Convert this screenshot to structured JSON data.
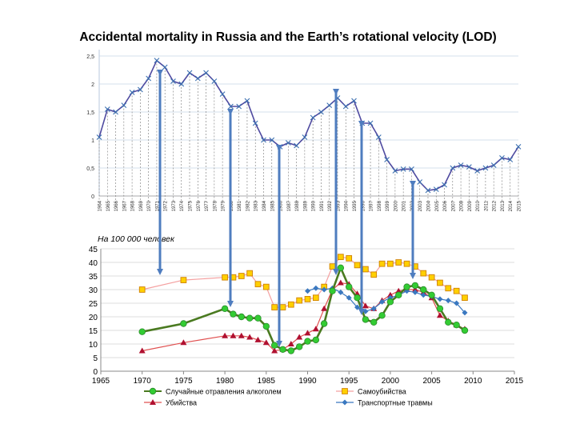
{
  "slide": {
    "title": "Accidental mortality in Russia and the Earth’s rotational velocity (LOD)"
  },
  "colors": {
    "lod_line": "#4f4aa0",
    "lod_markers": "#3a6fb0",
    "alcohol": "#4a7a20",
    "alcohol_marker": "#33cc33",
    "suicide": "#f4a0a0",
    "suicide_marker": "#ffd000",
    "homicide": "#e05050",
    "homicide_marker": "#b01030",
    "transport": "#3a78c0",
    "arrow": "#4f7dbf"
  },
  "chart_data": [
    {
      "type": "line",
      "title": "",
      "xlabel": "",
      "ylabel": "",
      "ylim": [
        0,
        2.5
      ],
      "yticks": [
        "0",
        "0,5",
        "1",
        "1,5",
        "2",
        "2,5"
      ],
      "x": [
        1964,
        1965,
        1966,
        1967,
        1968,
        1969,
        1970,
        1971,
        1972,
        1973,
        1974,
        1975,
        1976,
        1977,
        1978,
        1979,
        1980,
        1981,
        1982,
        1983,
        1984,
        1985,
        1986,
        1987,
        1988,
        1989,
        1990,
        1991,
        1992,
        1993,
        1994,
        1995,
        1996,
        1997,
        1998,
        1999,
        2000,
        2001,
        2002,
        2003,
        2004,
        2005,
        2006,
        2007,
        2008,
        2009,
        2010,
        2011,
        2012,
        2013,
        2014,
        2015
      ],
      "x_tick_labels": [
        "1964",
        "1965",
        "1966",
        "1967",
        "1968",
        "1969",
        "1970",
        "1971",
        "1972",
        "1973",
        "1974",
        "1975",
        "1976",
        "1977",
        "1978",
        "1979",
        "1980",
        "1981",
        "1982",
        "1983",
        "1984",
        "1985",
        "1986",
        "1987",
        "1988",
        "1989",
        "1990",
        "1991",
        "1992",
        "1993",
        "1994",
        "1995",
        "1996",
        "1997",
        "1998",
        "1999",
        "2000",
        "2001",
        "2002",
        "2003",
        "2004",
        "2005",
        "2006",
        "2007",
        "2008",
        "2009",
        "2010",
        "2011",
        "2012",
        "2013",
        "2014",
        "2015"
      ],
      "series": [
        {
          "name": "LOD",
          "values": [
            1.05,
            1.55,
            1.5,
            1.62,
            1.85,
            1.9,
            2.1,
            2.42,
            2.3,
            2.05,
            2.0,
            2.2,
            2.1,
            2.2,
            2.05,
            1.82,
            1.6,
            1.6,
            1.7,
            1.3,
            1.0,
            1.0,
            0.88,
            0.95,
            0.9,
            1.05,
            1.4,
            1.5,
            1.62,
            1.75,
            1.6,
            1.7,
            1.3,
            1.3,
            1.05,
            0.65,
            0.45,
            0.48,
            0.48,
            0.25,
            0.1,
            0.12,
            0.2,
            0.5,
            0.55,
            0.52,
            0.45,
            0.5,
            0.55,
            0.68,
            0.65,
            0.88
          ]
        }
      ]
    },
    {
      "type": "line",
      "title": "На 100 000 человек",
      "xlabel": "",
      "ylabel": "",
      "xlim": [
        1965,
        2015
      ],
      "ylim": [
        0,
        45
      ],
      "xticks": [
        "1965",
        "1970",
        "1975",
        "1980",
        "1985",
        "1990",
        "1995",
        "2000",
        "2005",
        "2010",
        "2015"
      ],
      "yticks": [
        "0",
        "5",
        "10",
        "15",
        "20",
        "25",
        "30",
        "35",
        "40",
        "45"
      ],
      "legend_position": "bottom",
      "series": [
        {
          "name": "Случайные отравления алкоголем",
          "x": [
            1970,
            1975,
            1980,
            1981,
            1982,
            1983,
            1984,
            1985,
            1986,
            1987,
            1988,
            1989,
            1990,
            1991,
            1992,
            1993,
            1994,
            1995,
            1996,
            1997,
            1998,
            1999,
            2000,
            2001,
            2002,
            2003,
            2004,
            2005,
            2006,
            2007,
            2008,
            2009
          ],
          "values": [
            14.5,
            17.5,
            23,
            21,
            20,
            19.5,
            19.5,
            16.5,
            9.5,
            8,
            7.5,
            9,
            11,
            11.5,
            17.5,
            29.5,
            38,
            31,
            27,
            19,
            18,
            20.5,
            25.5,
            28,
            31,
            31.5,
            30,
            28,
            23,
            18,
            17,
            15
          ]
        },
        {
          "name": "Самоубийства",
          "x": [
            1970,
            1975,
            1980,
            1981,
            1982,
            1983,
            1984,
            1985,
            1986,
            1987,
            1988,
            1989,
            1990,
            1991,
            1992,
            1993,
            1994,
            1995,
            1996,
            1997,
            1998,
            1999,
            2000,
            2001,
            2002,
            2003,
            2004,
            2005,
            2006,
            2007,
            2008,
            2009
          ],
          "values": [
            30,
            33.5,
            34.5,
            34.5,
            35,
            36,
            32,
            31,
            23.5,
            23.5,
            24.5,
            26,
            26.5,
            27,
            31,
            38.5,
            42,
            41.5,
            39,
            37.5,
            35.5,
            39.5,
            39.5,
            40,
            39.5,
            38.5,
            36,
            34.5,
            32.5,
            30.5,
            29.5,
            27
          ]
        },
        {
          "name": "Убийства",
          "x": [
            1970,
            1975,
            1980,
            1981,
            1982,
            1983,
            1984,
            1985,
            1986,
            1987,
            1988,
            1989,
            1990,
            1991,
            1992,
            1993,
            1994,
            1995,
            1996,
            1997,
            1998,
            1999,
            2000,
            2001,
            2002,
            2003,
            2004,
            2005,
            2006,
            2007,
            2008,
            2009
          ],
          "values": [
            7.5,
            10.5,
            13,
            13,
            13,
            12.5,
            11.5,
            10.5,
            7.5,
            8,
            10,
            12.5,
            14,
            15.5,
            23,
            30,
            32.5,
            32,
            28.5,
            24,
            23,
            26,
            28,
            29.5,
            30,
            30,
            29,
            27,
            20.5,
            18.5,
            17,
            15.5
          ]
        },
        {
          "name": "Транспортные травмы",
          "x": [
            1990,
            1991,
            1992,
            1993,
            1994,
            1995,
            1996,
            1997,
            1998,
            1999,
            2000,
            2001,
            2002,
            2003,
            2004,
            2005,
            2006,
            2007,
            2008,
            2009
          ],
          "values": [
            29.5,
            30.5,
            30,
            30.5,
            29,
            27,
            23.5,
            22,
            23,
            25.5,
            27,
            28,
            29.5,
            29,
            28,
            27.5,
            26.5,
            26,
            25,
            21.5
          ]
        }
      ]
    }
  ]
}
